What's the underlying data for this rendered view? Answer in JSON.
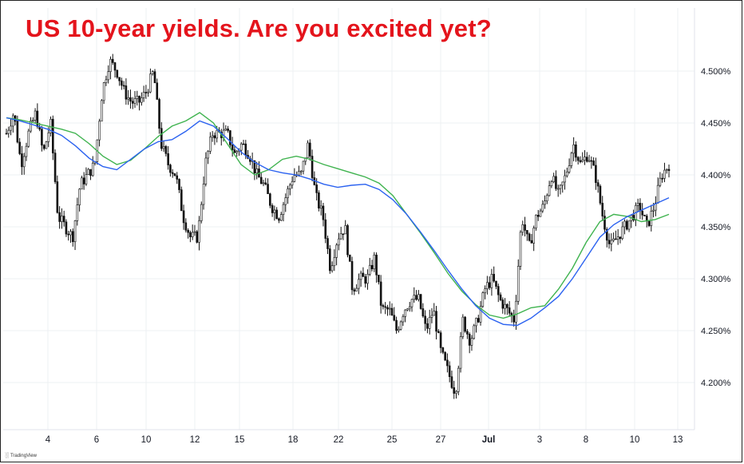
{
  "title": "US 10-year yields. Are you excited yet?",
  "colors": {
    "title": "#e4141c",
    "candle": "#111111",
    "ma_green": "#3fb34f",
    "ma_blue": "#2b62f0",
    "grid": "#eef0f3"
  },
  "branding": {
    "text": "TradingView",
    "icon": "tradingview-logo-icon"
  },
  "chart_data": {
    "type": "line",
    "price_axis": {
      "position": "right",
      "ticks": [
        "4.500%",
        "4.450%",
        "4.400%",
        "4.350%",
        "4.300%",
        "4.250%",
        "4.200%"
      ],
      "tick_values": [
        4.5,
        4.45,
        4.4,
        4.35,
        4.3,
        4.25,
        4.2
      ],
      "range": [
        4.16,
        4.53
      ]
    },
    "time_axis": {
      "ticks": [
        "4",
        "6",
        "10",
        "12",
        "15",
        "18",
        "22",
        "25",
        "27",
        "Jul",
        "3",
        "8",
        "10",
        "13"
      ],
      "bold_ticks": [
        "Jul"
      ]
    },
    "grid": true,
    "series": [
      {
        "name": "",
        "kind": "price",
        "values": [
          4.44,
          4.46,
          4.41,
          4.44,
          4.46,
          4.42,
          4.45,
          4.36,
          4.35,
          4.34,
          4.39,
          4.4,
          4.41,
          4.48,
          4.51,
          4.5,
          4.48,
          4.47,
          4.47,
          4.48,
          4.5,
          4.43,
          4.41,
          4.4,
          4.36,
          4.34,
          4.34,
          4.41,
          4.44,
          4.44,
          4.44,
          4.42,
          4.43,
          4.42,
          4.4,
          4.39,
          4.37,
          4.36,
          4.38,
          4.4,
          4.4,
          4.43,
          4.38,
          4.36,
          4.31,
          4.34,
          4.35,
          4.29,
          4.3,
          4.3,
          4.32,
          4.27,
          4.27,
          4.25,
          4.27,
          4.28,
          4.28,
          4.25,
          4.27,
          4.23,
          4.21,
          4.19,
          4.26,
          4.24,
          4.26,
          4.29,
          4.3,
          4.28,
          4.27,
          4.26,
          4.36,
          4.33,
          4.36,
          4.37,
          4.4,
          4.38,
          4.4,
          4.43,
          4.41,
          4.42,
          4.4,
          4.36,
          4.33,
          4.34,
          4.35,
          4.36,
          4.37,
          4.35,
          4.37,
          4.4,
          4.41
        ]
      },
      {
        "name": "",
        "kind": "moving-average",
        "color_key": "ma_green",
        "values": [
          4.455,
          4.453,
          4.45,
          4.447,
          4.444,
          4.44,
          4.43,
          4.418,
          4.41,
          4.414,
          4.425,
          4.437,
          4.447,
          4.452,
          4.46,
          4.45,
          4.43,
          4.41,
          4.4,
          4.405,
          4.415,
          4.418,
          4.415,
          4.41,
          4.406,
          4.402,
          4.398,
          4.392,
          4.38,
          4.362,
          4.344,
          4.325,
          4.305,
          4.288,
          4.275,
          4.265,
          4.262,
          4.266,
          4.272,
          4.274,
          4.29,
          4.31,
          4.335,
          4.355,
          4.362,
          4.36,
          4.355,
          4.357,
          4.362
        ]
      },
      {
        "name": "",
        "kind": "moving-average",
        "color_key": "ma_blue",
        "values": [
          4.455,
          4.452,
          4.448,
          4.444,
          4.438,
          4.428,
          4.416,
          4.408,
          4.405,
          4.415,
          4.425,
          4.432,
          4.434,
          4.442,
          4.452,
          4.447,
          4.435,
          4.422,
          4.412,
          4.405,
          4.402,
          4.4,
          4.396,
          4.391,
          4.388,
          4.39,
          4.391,
          4.386,
          4.376,
          4.362,
          4.345,
          4.327,
          4.308,
          4.29,
          4.274,
          4.262,
          4.256,
          4.255,
          4.262,
          4.272,
          4.283,
          4.3,
          4.32,
          4.34,
          4.352,
          4.36,
          4.366,
          4.372,
          4.378
        ]
      }
    ]
  }
}
